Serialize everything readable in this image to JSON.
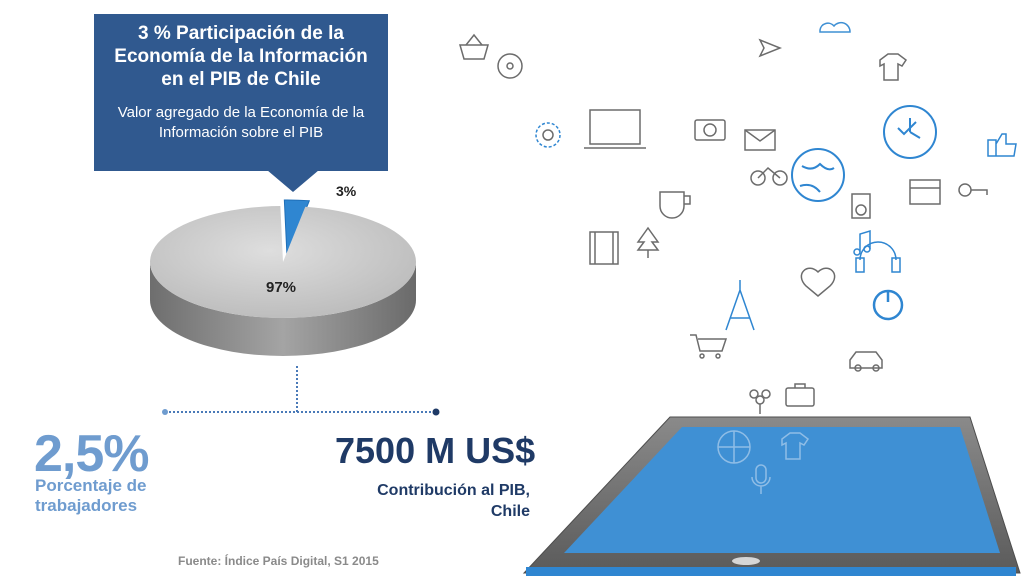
{
  "header": {
    "title": "3 % Participación de la Economía de la Información en el PIB de Chile",
    "subtitle": "Valor agregado de la Economía de la Información sobre el PIB"
  },
  "chart_data": {
    "type": "pie",
    "slices": [
      {
        "label": "3%",
        "value": 3,
        "color": "#2f86d1"
      },
      {
        "label": "97%",
        "value": 97,
        "color": "#c9c9c9"
      }
    ]
  },
  "stats": {
    "workers_value": "2,5%",
    "workers_label": "Porcentaje de trabajadores",
    "gdp_value": "7500 M US$",
    "gdp_label_1": "Contribución al PIB,",
    "gdp_label_2": "Chile"
  },
  "footer": {
    "source": "Fuente: Índice País Digital, S1 2015"
  },
  "colors": {
    "title_bg": "#30598f",
    "accent_blue": "#3f90d4",
    "light_blue": "#6f9ccf",
    "dark_navy": "#1f3a66"
  },
  "icons": [
    "basket-icon",
    "shopping-cart-icon",
    "airplane-icon",
    "cloud-icon",
    "headphones-icon",
    "camera-icon",
    "globe-icon",
    "clock-icon",
    "bicycle-icon",
    "eiffel-tower-icon",
    "envelope-icon",
    "music-note-icon",
    "power-icon",
    "coffee-cup-icon",
    "shirt-icon",
    "heart-icon",
    "thumbs-up-icon",
    "car-icon",
    "film-strip-icon",
    "gear-icon"
  ]
}
